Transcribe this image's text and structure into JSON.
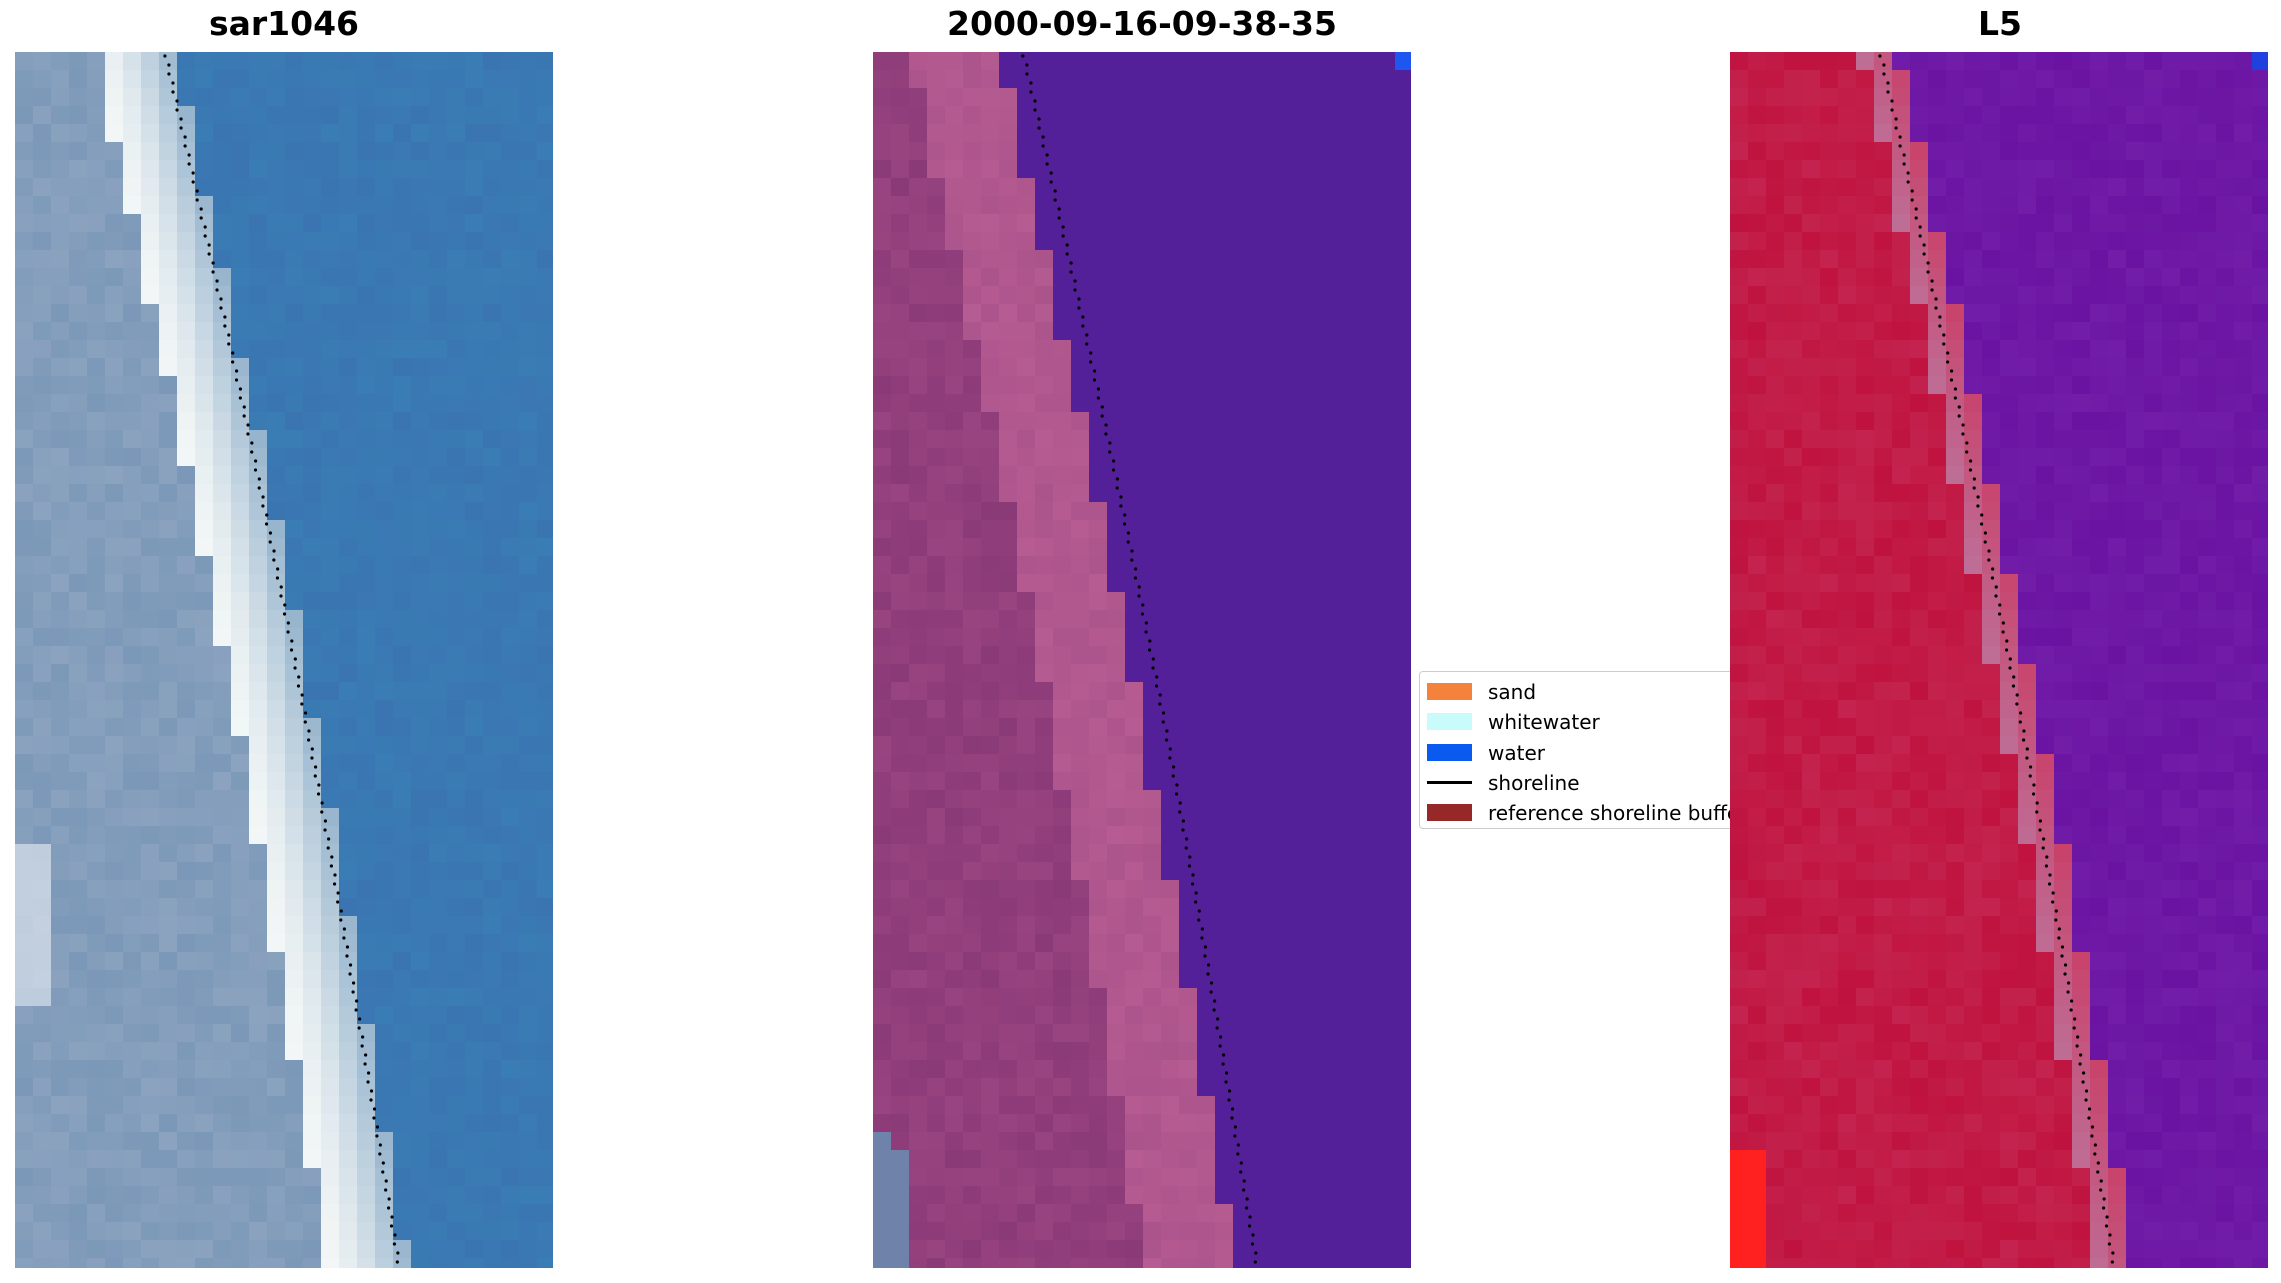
{
  "panels": [
    {
      "title": "sar1046",
      "kind": "rgb-image"
    },
    {
      "title": "2000-09-16-09-38-35",
      "kind": "classified-overlay"
    },
    {
      "title": "L5",
      "kind": "probability-map"
    }
  ],
  "legend": {
    "items": [
      {
        "label": "sand",
        "color": "#f4823d",
        "type": "patch"
      },
      {
        "label": "whitewater",
        "color": "#c9fbfb",
        "type": "patch"
      },
      {
        "label": "water",
        "color": "#0a5af0",
        "type": "patch"
      },
      {
        "label": "shoreline",
        "color": "#000000",
        "type": "line"
      },
      {
        "label": "reference shoreline buffer",
        "color": "#962828",
        "type": "patch"
      }
    ]
  },
  "colors": {
    "sar_water": "#3a7cb4",
    "sar_beach": "#f2f6f6",
    "sar_land": "#7b98b8",
    "class_land": "#8b3a78",
    "class_beach": "#b65c92",
    "class_water": "#54209a",
    "prob_land": "#c0123e",
    "prob_beach": "#c8436c",
    "prob_water": "#6a12a2",
    "shoreline_dots": "#000000"
  }
}
